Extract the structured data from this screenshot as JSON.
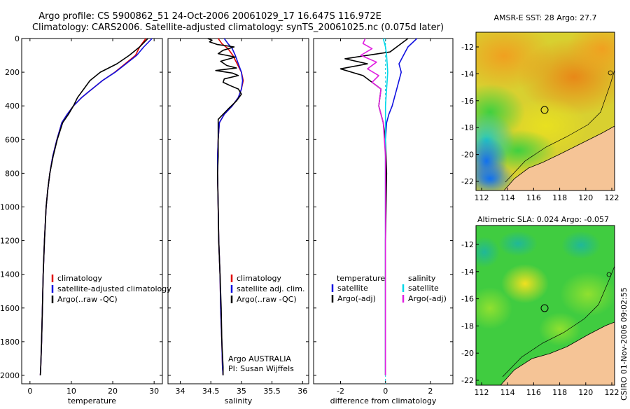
{
  "title_line1": "Argo profile: CS 5900862_51 24-Oct-2006 20061029_17 16.647S 116.972E",
  "title_line2": "Climatology: CARS2006. Satellite-adjusted climatology: synTS_20061025.nc (0.075d later)",
  "credit": "CSIRO 01-Nov-2006 09:02:55",
  "chart_data": [
    {
      "id": "temperature",
      "type": "line",
      "xlabel": "temperature",
      "ylabel": "",
      "xlim": [
        -2,
        32
      ],
      "ylim": [
        0,
        2050
      ],
      "y_inverted": true,
      "xticks": [
        0,
        10,
        20,
        30
      ],
      "yticks": [
        0,
        200,
        400,
        600,
        800,
        1000,
        1200,
        1400,
        1600,
        1800,
        2000
      ],
      "legend": [
        "climatology",
        "satellite-adjusted climatology",
        "Argo(..raw -QC)"
      ],
      "annotation": [],
      "series": [
        {
          "name": "climatology",
          "color": "#e00000",
          "x": [
            28.0,
            26.5,
            25.5,
            23.0,
            20.5,
            17.5,
            15.0,
            12.5,
            10.5,
            9.0,
            7.7,
            6.5,
            5.5,
            4.8,
            4.3,
            3.9,
            3.5,
            3.2,
            3.0,
            2.8,
            2.6,
            2.5
          ],
          "y": [
            0,
            50,
            100,
            150,
            200,
            250,
            300,
            350,
            400,
            450,
            500,
            600,
            700,
            800,
            900,
            1000,
            1200,
            1400,
            1600,
            1800,
            1950,
            2000
          ]
        },
        {
          "name": "satellite-adjusted climatology",
          "color": "#1010e0",
          "x": [
            29.5,
            27.5,
            25.8,
            23.2,
            20.6,
            17.5,
            15.0,
            12.5,
            10.5,
            9.0,
            7.7,
            6.5,
            5.5,
            4.8,
            4.3,
            3.9,
            3.5,
            3.2,
            3.0,
            2.8,
            2.6,
            2.5
          ],
          "y": [
            0,
            50,
            100,
            150,
            200,
            250,
            300,
            350,
            400,
            450,
            500,
            600,
            700,
            800,
            900,
            1000,
            1200,
            1400,
            1600,
            1800,
            1950,
            2000
          ]
        },
        {
          "name": "Argo(..raw -QC)",
          "color": "#000000",
          "x": [
            28.5,
            26.5,
            24.0,
            21.0,
            17.0,
            14.5,
            13.0,
            11.5,
            10.5,
            9.3,
            7.9,
            6.6,
            5.6,
            4.8,
            4.3,
            3.9,
            3.5,
            3.2,
            3.0,
            2.8,
            2.6,
            2.5
          ],
          "y": [
            0,
            50,
            100,
            150,
            200,
            250,
            300,
            350,
            400,
            450,
            500,
            600,
            700,
            800,
            900,
            1000,
            1200,
            1400,
            1600,
            1800,
            1950,
            2000
          ]
        }
      ]
    },
    {
      "id": "salinity",
      "type": "line",
      "xlabel": "salinity",
      "ylabel": "",
      "xlim": [
        33.8,
        36.1
      ],
      "ylim": [
        0,
        2050
      ],
      "y_inverted": true,
      "xticks": [
        34,
        34.5,
        35,
        35.5,
        36
      ],
      "yticks": [
        0,
        200,
        400,
        600,
        800,
        1000,
        1200,
        1400,
        1600,
        1800,
        2000
      ],
      "legend": [
        "climatology",
        "satellite adj. clim.",
        "Argo(..raw -QC)"
      ],
      "annotation": [
        "Argo AUSTRALIA",
        "PI: Susan Wijffels"
      ],
      "series": [
        {
          "name": "climatology",
          "color": "#e00000",
          "x": [
            34.62,
            34.68,
            34.78,
            34.86,
            34.93,
            35.0,
            35.03,
            35.0,
            34.95,
            34.85,
            34.72,
            34.64,
            34.62,
            34.61,
            34.61,
            34.62,
            34.63,
            34.65,
            34.66,
            34.68,
            34.69,
            34.7
          ],
          "y": [
            0,
            30,
            60,
            100,
            150,
            200,
            250,
            300,
            350,
            400,
            450,
            500,
            600,
            700,
            800,
            1000,
            1200,
            1400,
            1600,
            1800,
            1950,
            2000
          ]
        },
        {
          "name": "satellite adj. clim.",
          "color": "#1010e0",
          "x": [
            34.72,
            34.78,
            34.85,
            34.9,
            34.95,
            35.0,
            35.02,
            35.0,
            34.95,
            34.85,
            34.72,
            34.64,
            34.62,
            34.61,
            34.61,
            34.62,
            34.63,
            34.65,
            34.66,
            34.68,
            34.69,
            34.7
          ],
          "y": [
            0,
            30,
            60,
            100,
            150,
            200,
            250,
            300,
            350,
            400,
            450,
            500,
            600,
            700,
            800,
            1000,
            1200,
            1400,
            1600,
            1800,
            1950,
            2000
          ]
        },
        {
          "name": "Argo(..raw -QC)",
          "color": "#000000",
          "x": [
            34.45,
            34.52,
            34.48,
            34.6,
            34.88,
            34.7,
            34.62,
            34.9,
            34.66,
            34.76,
            34.92,
            34.58,
            34.85,
            34.95,
            34.72,
            34.7,
            34.82,
            34.95,
            35.0,
            34.92,
            34.78,
            34.62,
            34.62,
            34.62,
            34.61,
            34.62,
            34.63,
            34.65,
            34.67,
            34.68,
            34.7,
            34.7
          ],
          "y": [
            0,
            10,
            20,
            35,
            50,
            70,
            90,
            110,
            135,
            160,
            175,
            190,
            205,
            220,
            240,
            260,
            280,
            300,
            330,
            370,
            420,
            480,
            550,
            700,
            800,
            1000,
            1200,
            1400,
            1600,
            1800,
            1950,
            2000
          ]
        }
      ]
    },
    {
      "id": "difference",
      "type": "line",
      "xlabel": "difference from climatology",
      "ylabel": "",
      "xlim": [
        -3.2,
        3.0
      ],
      "ylim": [
        0,
        2050
      ],
      "y_inverted": true,
      "xticks": [
        -2,
        0,
        2
      ],
      "yticks": [
        0,
        200,
        400,
        600,
        800,
        1000,
        1200,
        1400,
        1600,
        1800,
        2000
      ],
      "legend": [
        "temperature",
        "satellite",
        "Argo(-adj)",
        "salinity",
        "satellite",
        "Argo(-adj)"
      ],
      "annotation": [],
      "series": [
        {
          "name": "temperature satellite",
          "color": "#1010e0",
          "x": [
            1.4,
            1.0,
            0.8,
            0.6,
            0.7,
            0.6,
            0.5,
            0.4,
            0.3,
            0.15,
            0.05,
            0.0,
            0.0,
            0.0,
            0.0,
            0.0
          ],
          "y": [
            0,
            50,
            100,
            150,
            200,
            250,
            300,
            350,
            400,
            450,
            500,
            600,
            800,
            1200,
            1600,
            2000
          ]
        },
        {
          "name": "temperature Argo(-adj)",
          "color": "#000000",
          "x": [
            1.0,
            0.5,
            0.2,
            -1.8,
            -0.8,
            -2.0,
            -1.0,
            -0.6,
            -0.2,
            -0.3,
            -0.1,
            0.0,
            0.05,
            0.0,
            0.0,
            0.0
          ],
          "y": [
            0,
            50,
            80,
            120,
            150,
            180,
            220,
            260,
            300,
            400,
            500,
            600,
            800,
            1200,
            1600,
            2000
          ]
        },
        {
          "name": "salinity satellite",
          "color": "#00d8e8",
          "x": [
            -0.1,
            0.0,
            0.05,
            0.1,
            0.05,
            0.0,
            0.0,
            0.0,
            0.0
          ],
          "y": [
            0,
            50,
            100,
            200,
            300,
            400,
            500,
            800,
            2000
          ]
        },
        {
          "name": "salinity Argo(-adj)",
          "color": "#e020e0",
          "x": [
            -0.9,
            -1.0,
            -0.6,
            -1.1,
            -0.4,
            -0.8,
            -0.3,
            -0.6,
            -0.2,
            -0.3,
            -0.1,
            0.0,
            0.0,
            0.0
          ],
          "y": [
            0,
            30,
            60,
            100,
            140,
            180,
            220,
            260,
            300,
            400,
            500,
            700,
            1000,
            2000
          ]
        }
      ]
    }
  ],
  "maps": [
    {
      "id": "sst",
      "title": "AMSR-E SST: 28 Argo: 27.7",
      "xticks": [
        "112",
        "114",
        "116",
        "118",
        "120",
        "122"
      ],
      "yticks": [
        "-12",
        "-14",
        "-16",
        "-18",
        "-20",
        "-22"
      ]
    },
    {
      "id": "sla",
      "title": "Altimetric SLA: 0.024 Argo: -0.057",
      "xticks": [
        "112",
        "114",
        "116",
        "118",
        "120",
        "122"
      ],
      "yticks": [
        "-12",
        "-14",
        "-16",
        "-18",
        "-20",
        "-22"
      ]
    }
  ]
}
